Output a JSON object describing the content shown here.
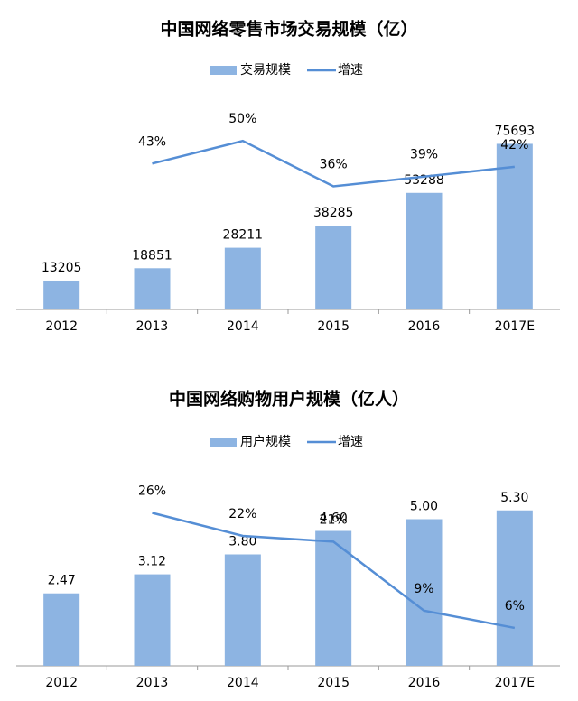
{
  "chart_data": [
    {
      "type": "bar-line",
      "title": "中国网络零售市场交易规模（亿）",
      "categories": [
        "2012",
        "2013",
        "2014",
        "2015",
        "2016",
        "2017E"
      ],
      "series": [
        {
          "name": "交易规模",
          "type": "bar",
          "color": "#8db4e2",
          "values": [
            13205,
            18851,
            28211,
            38285,
            53288,
            75693
          ]
        },
        {
          "name": "增速",
          "type": "line",
          "axis": "y2",
          "color": "#558ed5",
          "values": [
            null,
            43,
            50,
            36,
            39,
            42
          ],
          "value_labels": [
            null,
            "43%",
            "50%",
            "36%",
            "39%",
            "42%"
          ]
        }
      ],
      "ylim": [
        0,
        80000
      ],
      "y2lim": [
        -2,
        52
      ],
      "legend": "top"
    },
    {
      "type": "bar-line",
      "title": "中国网络购物用户规模（亿人）",
      "categories": [
        "2012",
        "2013",
        "2014",
        "2015",
        "2016",
        "2017E"
      ],
      "series": [
        {
          "name": "用户规模",
          "type": "bar",
          "color": "#8db4e2",
          "values": [
            2.47,
            3.12,
            3.8,
            4.6,
            5,
            5.3
          ],
          "value_labels": [
            "2.47",
            "3.12",
            "3.80",
            "4.60",
            "5.00",
            "5.30"
          ]
        },
        {
          "name": "增速",
          "type": "line",
          "axis": "y2",
          "color": "#558ed5",
          "values": [
            null,
            26,
            22,
            21,
            9,
            6
          ],
          "value_labels": [
            null,
            "26%",
            "22%",
            "21%",
            "9%",
            "6%"
          ]
        }
      ],
      "ylim": [
        0,
        6
      ],
      "y2lim": [
        -0.6,
        30
      ],
      "legend": "top"
    }
  ]
}
